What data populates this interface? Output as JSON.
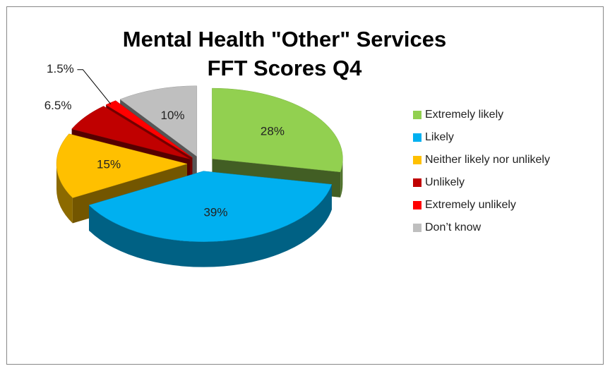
{
  "chart_data": {
    "type": "pie3d",
    "title": [
      "Mental Health  \"Other\" Services",
      "FFT Scores Q4"
    ],
    "categories": [
      "Extremely likely",
      "Likely",
      "Neither likely nor unlikely",
      "Unlikely",
      "Extremely unlikely",
      "Don’t know"
    ],
    "values": [
      28,
      39,
      15,
      6.5,
      1.5,
      10
    ],
    "value_labels": [
      "28%",
      "39%",
      "15%",
      "6.5%",
      "1.5%",
      "10%"
    ],
    "colors": [
      "#92d050",
      "#00b0f0",
      "#ffc000",
      "#c00000",
      "#ff0000",
      "#bfbfbf"
    ],
    "legend": "right"
  }
}
